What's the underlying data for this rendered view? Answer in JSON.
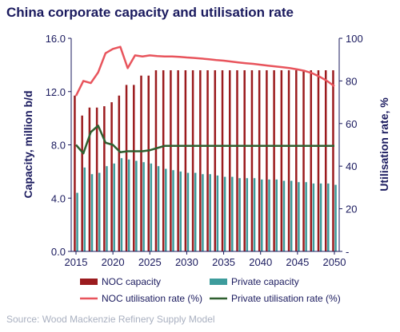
{
  "chart_data": {
    "type": "bar",
    "title": "China corporate capacity and utilisation rate",
    "source": "Source: Wood Mackenzie Refinery Supply Model",
    "x": [
      2015,
      2016,
      2017,
      2018,
      2019,
      2020,
      2021,
      2022,
      2023,
      2024,
      2025,
      2026,
      2027,
      2028,
      2029,
      2030,
      2031,
      2032,
      2033,
      2034,
      2035,
      2036,
      2037,
      2038,
      2039,
      2040,
      2041,
      2042,
      2043,
      2044,
      2045,
      2046,
      2047,
      2048,
      2049,
      2050
    ],
    "x_ticks": [
      "2015",
      "2020",
      "2025",
      "2030",
      "2035",
      "2040",
      "2045",
      "2050"
    ],
    "y_left": {
      "label": "Capacity, million b/d",
      "min": 0,
      "max": 16,
      "ticks": [
        "0.0",
        "4.0",
        "8.0",
        "12.0",
        "16.0"
      ]
    },
    "y_right": {
      "label": "Utilisation rate, %",
      "min": 0,
      "max": 100,
      "ticks": [
        "-",
        "20",
        "40",
        "60",
        "80",
        "100"
      ]
    },
    "series": [
      {
        "name": "NOC capacity",
        "kind": "bar",
        "axis": "left",
        "color": "#9b1b1e",
        "values": [
          11.7,
          10.2,
          10.8,
          10.8,
          10.9,
          11.2,
          11.7,
          12.5,
          12.5,
          13.2,
          13.2,
          13.6,
          13.6,
          13.6,
          13.6,
          13.6,
          13.6,
          13.6,
          13.6,
          13.6,
          13.6,
          13.6,
          13.6,
          13.6,
          13.6,
          13.6,
          13.6,
          13.6,
          13.6,
          13.6,
          13.6,
          13.6,
          13.6,
          13.6,
          13.6,
          13.6
        ]
      },
      {
        "name": "Private capacity",
        "kind": "bar",
        "axis": "left",
        "color": "#3d9c9c",
        "values": [
          4.4,
          6.3,
          5.8,
          5.9,
          6.4,
          6.6,
          7.0,
          6.9,
          6.8,
          6.7,
          6.6,
          6.4,
          6.2,
          6.1,
          6.0,
          5.9,
          5.9,
          5.8,
          5.8,
          5.7,
          5.6,
          5.6,
          5.5,
          5.5,
          5.5,
          5.4,
          5.4,
          5.4,
          5.3,
          5.3,
          5.2,
          5.2,
          5.1,
          5.1,
          5.1,
          5.0
        ]
      },
      {
        "name": "NOC utilisation rate (%)",
        "kind": "line",
        "axis": "right",
        "color": "#e8545c",
        "values": [
          73,
          80,
          79,
          84,
          93,
          95,
          96,
          86,
          92,
          91.5,
          92,
          91.7,
          91.5,
          91.5,
          91.3,
          91,
          90.8,
          90.5,
          90.2,
          89.8,
          89.5,
          89.1,
          88.7,
          88.3,
          88,
          87.6,
          87.2,
          86.8,
          86.4,
          86,
          85.4,
          84.7,
          83.6,
          82,
          80,
          77.5
        ]
      },
      {
        "name": "Private utilisation rate (%)",
        "kind": "line",
        "axis": "right",
        "color": "#2f5f2f",
        "values": [
          50,
          46,
          56,
          59,
          51,
          50,
          46.5,
          47,
          47,
          47,
          47.5,
          48.5,
          49.5,
          49.5,
          49.5,
          49.5,
          49.5,
          49.5,
          49.5,
          49.5,
          49.5,
          49.5,
          49.5,
          49.5,
          49.5,
          49.5,
          49.5,
          49.5,
          49.5,
          49.5,
          49.5,
          49.5,
          49.5,
          49.5,
          49.5,
          49.5
        ]
      }
    ],
    "legend": "bottom"
  }
}
